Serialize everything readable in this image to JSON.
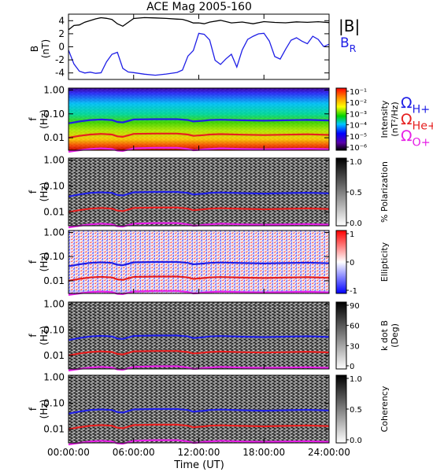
{
  "title": "ACE Mag 2005-160",
  "chart_data": [
    {
      "id": "field",
      "type": "line",
      "ylabel": "B",
      "yunit": "(nT)",
      "ylim": [
        -5,
        5
      ],
      "yticks": [
        4,
        2,
        0,
        -2,
        -4
      ],
      "legend": [
        {
          "label": "|B|",
          "color": "#000000"
        },
        {
          "label": "B",
          "sub": "R",
          "color": "#1f1fe6"
        }
      ],
      "series": [
        {
          "name": "|B|",
          "color": "#000000",
          "x": [
            0,
            0.5,
            1,
            1.5,
            2,
            2.5,
            3,
            3.5,
            4,
            4.5,
            5,
            6,
            7,
            8,
            9,
            10,
            10.5,
            11,
            11.5,
            12,
            12.5,
            13,
            14,
            15,
            16,
            17,
            18,
            19,
            20,
            21,
            22,
            23,
            24
          ],
          "values": [
            2.6,
            3.2,
            3.3,
            3.8,
            4.1,
            4.3,
            4.4,
            4.3,
            4.2,
            3.6,
            3.2,
            4.3,
            4.4,
            4.4,
            4.4,
            4.3,
            4.2,
            3.9,
            3.6,
            3.7,
            3.6,
            3.8,
            4.0,
            3.6,
            3.8,
            3.6,
            3.9,
            3.7,
            3.6,
            3.8,
            3.8,
            3.9,
            3.7
          ]
        },
        {
          "name": "B_R",
          "color": "#1f1fe6",
          "x": [
            0,
            0.5,
            1,
            1.5,
            2,
            2.5,
            3,
            3.5,
            4,
            4.5,
            5,
            5.5,
            6,
            7,
            8,
            9,
            10,
            10.5,
            11,
            11.5,
            12,
            12.5,
            13,
            13.5,
            14,
            14.5,
            15,
            15.5,
            16,
            16.5,
            17,
            17.5,
            18,
            18.5,
            19,
            19.5,
            20,
            20.5,
            21,
            21.5,
            22,
            22.5,
            23,
            23.5,
            24
          ],
          "values": [
            -0.5,
            -2.5,
            -3.6,
            -4.0,
            -4.0,
            -4.2,
            -4.0,
            -2.2,
            -1.0,
            -0.8,
            -3.4,
            -4.0,
            -4.0,
            -4.1,
            -4.2,
            -4.1,
            -4.0,
            -3.7,
            -1.5,
            -0.5,
            2.2,
            2.0,
            1.0,
            -2.2,
            -2.8,
            -1.8,
            -1.0,
            -3.0,
            -0.5,
            1.0,
            1.5,
            2.0,
            2.2,
            1.0,
            -1.5,
            -2.0,
            -0.5,
            1.0,
            1.5,
            1.0,
            0.5,
            1.5,
            1.0,
            0.0,
            0.5
          ]
        }
      ]
    },
    {
      "id": "intensity",
      "type": "heatmap",
      "ylabel": "f",
      "yunit": "(Hz)",
      "yscale": "log",
      "ylim": [
        0.003,
        1.2
      ],
      "yticks": [
        "1.00",
        "0.10",
        "0.01"
      ],
      "colorbar": {
        "label": "Intensity",
        "unit": "(nT²/Hz)",
        "scale": "log",
        "ticks": [
          "10⁻¹",
          "10⁻²",
          "10⁻³",
          "10⁻⁴",
          "10⁻⁵",
          "10⁻⁶"
        ],
        "colormap": "rainbow"
      }
    },
    {
      "id": "polarization",
      "type": "heatmap",
      "ylabel": "f",
      "yunit": "(Hz)",
      "yscale": "log",
      "yticks": [
        "1.00",
        "0.10",
        "0.01"
      ],
      "colorbar": {
        "label": "% Polarization",
        "ticks": [
          "1.0",
          "0.5",
          "0.0"
        ],
        "colormap": "gray"
      }
    },
    {
      "id": "ellipticity",
      "type": "heatmap",
      "ylabel": "f",
      "yunit": "(Hz)",
      "yscale": "log",
      "yticks": [
        "1.00",
        "0.10",
        "0.01"
      ],
      "colorbar": {
        "label": "Ellipticity",
        "ticks": [
          "1",
          "0",
          "-1"
        ],
        "colormap": "blue-white-red"
      }
    },
    {
      "id": "kdotb",
      "type": "heatmap",
      "ylabel": "f",
      "yunit": "(Hz)",
      "yscale": "log",
      "yticks": [
        "1.00",
        "0.10",
        "0.01"
      ],
      "colorbar": {
        "label": "k dot B",
        "unit": "(Deg)",
        "ticks": [
          "90",
          "60",
          "30",
          "0"
        ],
        "colormap": "gray"
      }
    },
    {
      "id": "coherency",
      "type": "heatmap",
      "ylabel": "f",
      "yunit": "(Hz)",
      "yscale": "log",
      "yticks": [
        "1.00",
        "0.10",
        "0.01"
      ],
      "colorbar": {
        "label": "Coherency",
        "ticks": [
          "1.0",
          "0.5",
          "0.0"
        ],
        "colormap": "gray"
      }
    }
  ],
  "gyrofrequencies": {
    "legend": [
      {
        "symbol": "Ω",
        "sub": "H+",
        "color": "#1f1fe6"
      },
      {
        "symbol": "Ω",
        "sub": "He+",
        "color": "#e61f1f"
      },
      {
        "symbol": "Ω",
        "sub": "O+",
        "color": "#e61fe6"
      }
    ],
    "x": [
      0,
      1,
      2,
      3,
      4,
      4.5,
      5,
      6,
      8,
      10,
      11,
      11.5,
      12,
      12.5,
      13,
      14,
      16,
      18,
      20,
      22,
      24
    ],
    "H+": [
      0.04,
      0.048,
      0.055,
      0.058,
      0.055,
      0.046,
      0.044,
      0.058,
      0.06,
      0.06,
      0.055,
      0.048,
      0.05,
      0.052,
      0.055,
      0.057,
      0.054,
      0.052,
      0.054,
      0.056,
      0.053
    ],
    "He+": [
      0.01,
      0.012,
      0.0137,
      0.0145,
      0.0137,
      0.0115,
      0.011,
      0.0145,
      0.015,
      0.015,
      0.0137,
      0.012,
      0.0125,
      0.013,
      0.0137,
      0.0142,
      0.0135,
      0.013,
      0.0135,
      0.014,
      0.0132
    ],
    "O+": [
      0.0026,
      0.003,
      0.0034,
      0.0036,
      0.0034,
      0.0029,
      0.0028,
      0.0036,
      0.0038,
      0.0038,
      0.0034,
      0.003,
      0.0031,
      0.0033,
      0.0034,
      0.0036,
      0.0034,
      0.0033,
      0.0034,
      0.0035,
      0.0033
    ]
  },
  "xaxis": {
    "label": "Time (UT)",
    "ticks": [
      "00:00:00",
      "06:00:00",
      "12:00:00",
      "18:00:00",
      "24:00:00"
    ],
    "range": [
      0,
      24
    ]
  }
}
